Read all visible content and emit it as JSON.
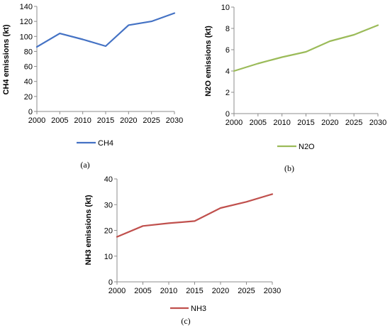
{
  "chart_data": [
    {
      "type": "line",
      "panel_label": "(a)",
      "x": [
        2000,
        2005,
        2010,
        2015,
        2020,
        2025,
        2030
      ],
      "series": [
        {
          "name": "CH4",
          "values": [
            86,
            104,
            96,
            87,
            115,
            120,
            131
          ],
          "color": "#4472C4"
        }
      ],
      "xlabel": "",
      "ylabel": "CH4 emissions (kt)",
      "xlim": [
        2000,
        2030
      ],
      "ylim": [
        0,
        140
      ],
      "yticks": [
        0,
        20,
        40,
        60,
        80,
        100,
        120,
        140
      ],
      "grid": false,
      "legend": "bottom"
    },
    {
      "type": "line",
      "panel_label": "(b)",
      "x": [
        2000,
        2005,
        2010,
        2015,
        2020,
        2025,
        2030
      ],
      "series": [
        {
          "name": "N2O",
          "values": [
            4.0,
            4.7,
            5.3,
            5.8,
            6.8,
            7.4,
            8.3
          ],
          "color": "#9BBB59"
        }
      ],
      "xlabel": "",
      "ylabel": "N2O emissions (kt)",
      "xlim": [
        2000,
        2030
      ],
      "ylim": [
        0,
        10
      ],
      "yticks": [
        0,
        2,
        4,
        6,
        8,
        10
      ],
      "grid": false,
      "legend": "bottom"
    },
    {
      "type": "line",
      "panel_label": "(c)",
      "x": [
        2000,
        2005,
        2010,
        2015,
        2020,
        2025,
        2030
      ],
      "series": [
        {
          "name": "NH3",
          "values": [
            17.5,
            21.7,
            22.8,
            23.6,
            28.7,
            31.1,
            34.1
          ],
          "color": "#C0504D"
        }
      ],
      "xlabel": "",
      "ylabel": "NH3 emissions (kt)",
      "xlim": [
        2000,
        2030
      ],
      "ylim": [
        0,
        40
      ],
      "yticks": [
        0,
        10,
        20,
        30,
        40
      ],
      "grid": false,
      "legend": "bottom"
    }
  ]
}
